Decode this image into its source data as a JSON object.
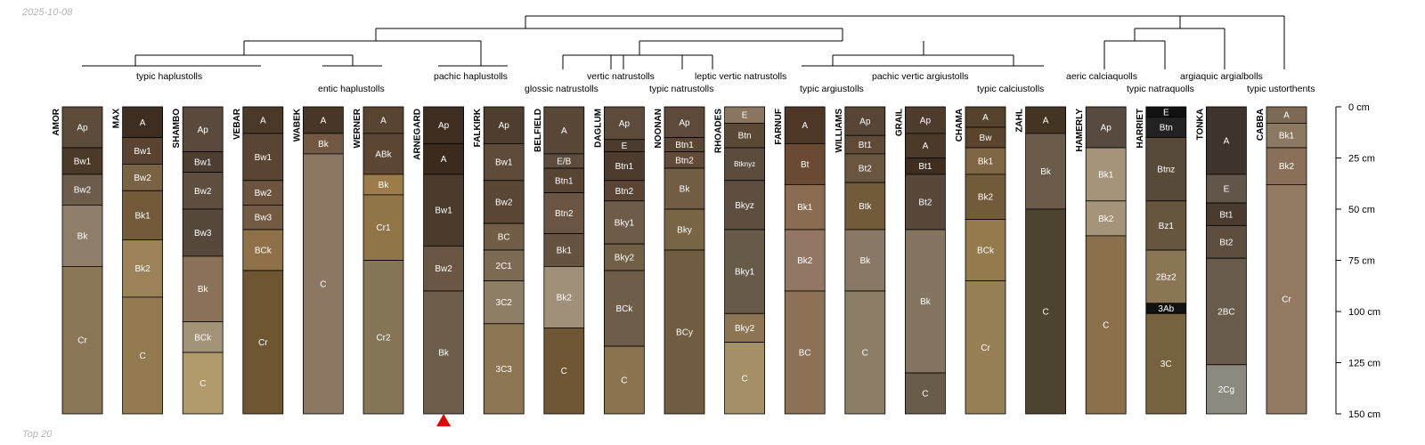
{
  "header": {
    "date": "2025-10-08",
    "footer": "Top 20"
  },
  "chart_data": {
    "type": "soil-profile-sketch",
    "depth_axis": {
      "unit": "cm",
      "max": 150,
      "ticks": [
        0,
        25,
        50,
        75,
        100,
        125,
        150
      ],
      "tick_labels": [
        "0 cm",
        "25 cm",
        "50 cm",
        "75 cm",
        "100 cm",
        "125 cm",
        "150 cm"
      ]
    },
    "marker": {
      "profile": "ARNEGARD",
      "color": "#e00000"
    },
    "profiles": [
      {
        "name": "AMOR",
        "horizons": [
          {
            "name": "Ap",
            "top": 0,
            "bottom": 20,
            "color": "#5e4c3a"
          },
          {
            "name": "Bw1",
            "top": 20,
            "bottom": 33,
            "color": "#4c3a29"
          },
          {
            "name": "Bw2",
            "top": 33,
            "bottom": 48,
            "color": "#6b5c4b"
          },
          {
            "name": "Bk",
            "top": 48,
            "bottom": 78,
            "color": "#8f7f6a"
          },
          {
            "name": "Cr",
            "top": 78,
            "bottom": 150,
            "color": "#8b7657"
          }
        ]
      },
      {
        "name": "MAX",
        "horizons": [
          {
            "name": "A",
            "top": 0,
            "bottom": 15,
            "color": "#3e2e22"
          },
          {
            "name": "Bw1",
            "top": 15,
            "bottom": 28,
            "color": "#5a4431"
          },
          {
            "name": "Bw2",
            "top": 28,
            "bottom": 41,
            "color": "#7a6245"
          },
          {
            "name": "Bk1",
            "top": 41,
            "bottom": 65,
            "color": "#735a3b"
          },
          {
            "name": "Bk2",
            "top": 65,
            "bottom": 93,
            "color": "#9b8258"
          },
          {
            "name": "C",
            "top": 93,
            "bottom": 150,
            "color": "#937a50"
          }
        ]
      },
      {
        "name": "SHAMBO",
        "horizons": [
          {
            "name": "Ap",
            "top": 0,
            "bottom": 22,
            "color": "#594a3d"
          },
          {
            "name": "Bw1",
            "top": 22,
            "bottom": 32,
            "color": "#4d3e31"
          },
          {
            "name": "Bw2",
            "top": 32,
            "bottom": 50,
            "color": "#5d4e3f"
          },
          {
            "name": "Bw3",
            "top": 50,
            "bottom": 73,
            "color": "#56483a"
          },
          {
            "name": "Bk",
            "top": 73,
            "bottom": 105,
            "color": "#8a7158"
          },
          {
            "name": "BCk",
            "top": 105,
            "bottom": 120,
            "color": "#a39479"
          },
          {
            "name": "C",
            "top": 120,
            "bottom": 150,
            "color": "#b09a6a"
          }
        ]
      },
      {
        "name": "VEBAR",
        "horizons": [
          {
            "name": "A",
            "top": 0,
            "bottom": 13,
            "color": "#4a3828"
          },
          {
            "name": "Bw1",
            "top": 13,
            "bottom": 36,
            "color": "#5a4532"
          },
          {
            "name": "Bw2",
            "top": 36,
            "bottom": 48,
            "color": "#6c5440"
          },
          {
            "name": "Bw3",
            "top": 48,
            "bottom": 60,
            "color": "#735a44"
          },
          {
            "name": "BCk",
            "top": 60,
            "bottom": 80,
            "color": "#8f7048"
          },
          {
            "name": "Cr",
            "top": 80,
            "bottom": 150,
            "color": "#6e5632"
          }
        ]
      },
      {
        "name": "WABEK",
        "horizons": [
          {
            "name": "A",
            "top": 0,
            "bottom": 13,
            "color": "#483729"
          },
          {
            "name": "Bk",
            "top": 13,
            "bottom": 23,
            "color": "#735843"
          },
          {
            "name": "C",
            "top": 23,
            "bottom": 150,
            "color": "#8c7763"
          }
        ]
      },
      {
        "name": "WERNER",
        "horizons": [
          {
            "name": "A",
            "top": 0,
            "bottom": 13,
            "color": "#574532"
          },
          {
            "name": "ABk",
            "top": 13,
            "bottom": 33,
            "color": "#5c4734"
          },
          {
            "name": "Bk",
            "top": 33,
            "bottom": 43,
            "color": "#9c7c4b"
          },
          {
            "name": "Cr1",
            "top": 43,
            "bottom": 75,
            "color": "#8f7547"
          },
          {
            "name": "Cr2",
            "top": 75,
            "bottom": 150,
            "color": "#847556"
          }
        ]
      },
      {
        "name": "ARNEGARD",
        "horizons": [
          {
            "name": "Ap",
            "top": 0,
            "bottom": 18,
            "color": "#3e2d21"
          },
          {
            "name": "A",
            "top": 18,
            "bottom": 33,
            "color": "#3b2b1f"
          },
          {
            "name": "Bw1",
            "top": 33,
            "bottom": 68,
            "color": "#4b3b2d"
          },
          {
            "name": "Bw2",
            "top": 68,
            "bottom": 90,
            "color": "#6a5642"
          },
          {
            "name": "Bk",
            "top": 90,
            "bottom": 150,
            "color": "#6d5e4b"
          }
        ]
      },
      {
        "name": "FALKIRK",
        "horizons": [
          {
            "name": "Ap",
            "top": 0,
            "bottom": 18,
            "color": "#4e3e30"
          },
          {
            "name": "Bw1",
            "top": 18,
            "bottom": 36,
            "color": "#5e4b39"
          },
          {
            "name": "Bw2",
            "top": 36,
            "bottom": 57,
            "color": "#5a4735"
          },
          {
            "name": "BC",
            "top": 57,
            "bottom": 70,
            "color": "#725d47"
          },
          {
            "name": "2C1",
            "top": 70,
            "bottom": 85,
            "color": "#7d6a54"
          },
          {
            "name": "3C2",
            "top": 85,
            "bottom": 106,
            "color": "#8f7e66"
          },
          {
            "name": "3C3",
            "top": 106,
            "bottom": 150,
            "color": "#8c7654"
          }
        ]
      },
      {
        "name": "BELFIELD",
        "horizons": [
          {
            "name": "A",
            "top": 0,
            "bottom": 23,
            "color": "#594738"
          },
          {
            "name": "E/B",
            "top": 23,
            "bottom": 30,
            "color": "#5e4c3c"
          },
          {
            "name": "Btn1",
            "top": 30,
            "bottom": 42,
            "color": "#574433"
          },
          {
            "name": "Btn2",
            "top": 42,
            "bottom": 62,
            "color": "#6b5441"
          },
          {
            "name": "Bk1",
            "top": 62,
            "bottom": 78,
            "color": "#66533f"
          },
          {
            "name": "Bk2",
            "top": 78,
            "bottom": 108,
            "color": "#a09079"
          },
          {
            "name": "C",
            "top": 108,
            "bottom": 150,
            "color": "#6f5634"
          }
        ]
      },
      {
        "name": "DAGLUM",
        "horizons": [
          {
            "name": "Ap",
            "top": 0,
            "bottom": 16,
            "color": "#5c4b3b"
          },
          {
            "name": "E",
            "top": 16,
            "bottom": 22,
            "color": "#4c3b2e"
          },
          {
            "name": "Btn1",
            "top": 22,
            "bottom": 36,
            "color": "#4e3d2e"
          },
          {
            "name": "Btn2",
            "top": 36,
            "bottom": 46,
            "color": "#5a4534"
          },
          {
            "name": "Bky1",
            "top": 46,
            "bottom": 67,
            "color": "#6e5c49"
          },
          {
            "name": "Bky2",
            "top": 67,
            "bottom": 80,
            "color": "#716047"
          },
          {
            "name": "BCk",
            "top": 80,
            "bottom": 117,
            "color": "#6e5d49"
          },
          {
            "name": "C",
            "top": 117,
            "bottom": 150,
            "color": "#8c7450"
          }
        ]
      },
      {
        "name": "NOONAN",
        "horizons": [
          {
            "name": "Ap",
            "top": 0,
            "bottom": 15,
            "color": "#5d4a3a"
          },
          {
            "name": "Btn1",
            "top": 15,
            "bottom": 22,
            "color": "#5a4634"
          },
          {
            "name": "Btn2",
            "top": 22,
            "bottom": 30,
            "color": "#614a38"
          },
          {
            "name": "Bk",
            "top": 30,
            "bottom": 50,
            "color": "#735d45"
          },
          {
            "name": "Bky",
            "top": 50,
            "bottom": 70,
            "color": "#7a6446"
          },
          {
            "name": "BCy",
            "top": 70,
            "bottom": 150,
            "color": "#705c40"
          }
        ]
      },
      {
        "name": "RHOADES",
        "horizons": [
          {
            "name": "E",
            "top": 0,
            "bottom": 8,
            "color": "#8a7560"
          },
          {
            "name": "Btn",
            "top": 8,
            "bottom": 20,
            "color": "#5b4938"
          },
          {
            "name": "Btknyz",
            "top": 20,
            "bottom": 36,
            "color": "#5c4c3d"
          },
          {
            "name": "Bkyz",
            "top": 36,
            "bottom": 60,
            "color": "#5d4e3f"
          },
          {
            "name": "Bky1",
            "top": 60,
            "bottom": 101,
            "color": "#685a48"
          },
          {
            "name": "Bky2",
            "top": 101,
            "bottom": 115,
            "color": "#8d7553"
          },
          {
            "name": "C",
            "top": 115,
            "bottom": 150,
            "color": "#a48f66"
          }
        ]
      },
      {
        "name": "FARNUF",
        "horizons": [
          {
            "name": "A",
            "top": 0,
            "bottom": 18,
            "color": "#4e3727"
          },
          {
            "name": "Bt",
            "top": 18,
            "bottom": 38,
            "color": "#6a4a33"
          },
          {
            "name": "Bk1",
            "top": 38,
            "bottom": 60,
            "color": "#8a6c52"
          },
          {
            "name": "Bk2",
            "top": 60,
            "bottom": 90,
            "color": "#917764"
          },
          {
            "name": "BC",
            "top": 90,
            "bottom": 150,
            "color": "#8d7257"
          }
        ]
      },
      {
        "name": "WILLIAMS",
        "horizons": [
          {
            "name": "Ap",
            "top": 0,
            "bottom": 14,
            "color": "#574637"
          },
          {
            "name": "Bt1",
            "top": 14,
            "bottom": 23,
            "color": "#5e4a37"
          },
          {
            "name": "Bt2",
            "top": 23,
            "bottom": 37,
            "color": "#6a5540"
          },
          {
            "name": "Btk",
            "top": 37,
            "bottom": 60,
            "color": "#715b3a"
          },
          {
            "name": "Bk",
            "top": 60,
            "bottom": 90,
            "color": "#887865"
          },
          {
            "name": "C",
            "top": 90,
            "bottom": 150,
            "color": "#8b7c66"
          }
        ]
      },
      {
        "name": "GRAIL",
        "horizons": [
          {
            "name": "Ap",
            "top": 0,
            "bottom": 13,
            "color": "#4e3c2c"
          },
          {
            "name": "A",
            "top": 13,
            "bottom": 25,
            "color": "#4c3a29"
          },
          {
            "name": "Bt1",
            "top": 25,
            "bottom": 33,
            "color": "#3f2d20"
          },
          {
            "name": "Bt2",
            "top": 33,
            "bottom": 60,
            "color": "#57483b"
          },
          {
            "name": "Bk",
            "top": 60,
            "bottom": 130,
            "color": "#847560"
          },
          {
            "name": "C",
            "top": 130,
            "bottom": 150,
            "color": "#6a5c4a"
          }
        ]
      },
      {
        "name": "CHAMA",
        "horizons": [
          {
            "name": "A",
            "top": 0,
            "bottom": 10,
            "color": "#57432d"
          },
          {
            "name": "Bw",
            "top": 10,
            "bottom": 20,
            "color": "#5b442d"
          },
          {
            "name": "Bk1",
            "top": 20,
            "bottom": 33,
            "color": "#7f6746"
          },
          {
            "name": "Bk2",
            "top": 33,
            "bottom": 55,
            "color": "#725b3a"
          },
          {
            "name": "BCk",
            "top": 55,
            "bottom": 85,
            "color": "#957a4e"
          },
          {
            "name": "Cr",
            "top": 85,
            "bottom": 150,
            "color": "#977f56"
          }
        ]
      },
      {
        "name": "ZAHL",
        "horizons": [
          {
            "name": "A",
            "top": 0,
            "bottom": 13,
            "color": "#433424"
          },
          {
            "name": "Bk",
            "top": 13,
            "bottom": 50,
            "color": "#6a5b4a"
          },
          {
            "name": "C",
            "top": 50,
            "bottom": 150,
            "color": "#4c4431"
          }
        ]
      },
      {
        "name": "HAMERLY",
        "horizons": [
          {
            "name": "Ap",
            "top": 0,
            "bottom": 20,
            "color": "#574a3f"
          },
          {
            "name": "Bk1",
            "top": 20,
            "bottom": 46,
            "color": "#a6947a"
          },
          {
            "name": "Bk2",
            "top": 46,
            "bottom": 63,
            "color": "#a6947a"
          },
          {
            "name": "C",
            "top": 63,
            "bottom": 150,
            "color": "#8a6f4b"
          }
        ]
      },
      {
        "name": "HARRIET",
        "horizons": [
          {
            "name": "E",
            "top": 0,
            "bottom": 5,
            "color": "#111111"
          },
          {
            "name": "Btn",
            "top": 5,
            "bottom": 15,
            "color": "#222222"
          },
          {
            "name": "Btnz",
            "top": 15,
            "bottom": 46,
            "color": "#574a39"
          },
          {
            "name": "Bz1",
            "top": 46,
            "bottom": 70,
            "color": "#665640"
          },
          {
            "name": "2Bz2",
            "top": 70,
            "bottom": 96,
            "color": "#8a7654"
          },
          {
            "name": "3Ab",
            "top": 96,
            "bottom": 101,
            "color": "#111111"
          },
          {
            "name": "3C",
            "top": 101,
            "bottom": 150,
            "color": "#776240"
          }
        ]
      },
      {
        "name": "TONKA",
        "horizons": [
          {
            "name": "A",
            "top": 0,
            "bottom": 33,
            "color": "#3f342b"
          },
          {
            "name": "E",
            "top": 33,
            "bottom": 47,
            "color": "#625549"
          },
          {
            "name": "Bt1",
            "top": 47,
            "bottom": 58,
            "color": "#4a3b2e"
          },
          {
            "name": "Bt2",
            "top": 58,
            "bottom": 74,
            "color": "#5d4e40"
          },
          {
            "name": "2BC",
            "top": 74,
            "bottom": 126,
            "color": "#685b4b"
          },
          {
            "name": "2Cg",
            "top": 126,
            "bottom": 150,
            "color": "#8c8a7f"
          }
        ]
      },
      {
        "name": "CABBA",
        "horizons": [
          {
            "name": "A",
            "top": 0,
            "bottom": 8,
            "color": "#7d6a55"
          },
          {
            "name": "Bk1",
            "top": 8,
            "bottom": 20,
            "color": "#8c7962"
          },
          {
            "name": "Bk2",
            "top": 20,
            "bottom": 38,
            "color": "#8a6f59"
          },
          {
            "name": "Cr",
            "top": 38,
            "bottom": 150,
            "color": "#937a63"
          }
        ]
      }
    ],
    "taxa": [
      "typic haplustolls",
      "entic haplustolls",
      "pachic haplustolls",
      "glossic natrustolls",
      "vertic natrustolls",
      "typic natrustolls",
      "leptic vertic natrustolls",
      "typic argiustolls",
      "pachic vertic argiustolls",
      "typic calciustolls",
      "aeric calciaquolls",
      "typic natraquolls",
      "argiaquic argialbolls",
      "typic ustorthents"
    ]
  }
}
